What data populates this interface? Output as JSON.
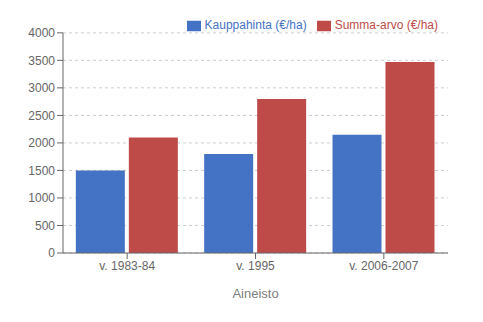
{
  "chart_data": {
    "type": "bar",
    "xlabel": "Aineisto",
    "categories": [
      "v. 1983-84",
      "v. 1995",
      "v. 2006-2007"
    ],
    "series": [
      {
        "name": "Kauppahinta (€/ha)",
        "color": "#4472C4",
        "values": [
          1500,
          1800,
          2150
        ]
      },
      {
        "name": "Summa-arvo (€/ha)",
        "color": "#BE4B48",
        "values": [
          2100,
          2800,
          3470
        ]
      }
    ],
    "ylim": [
      0,
      4000
    ],
    "yticks": [
      0,
      500,
      1000,
      1500,
      2000,
      2500,
      3000,
      3500,
      4000
    ],
    "grid": true,
    "legend": "upper right"
  }
}
